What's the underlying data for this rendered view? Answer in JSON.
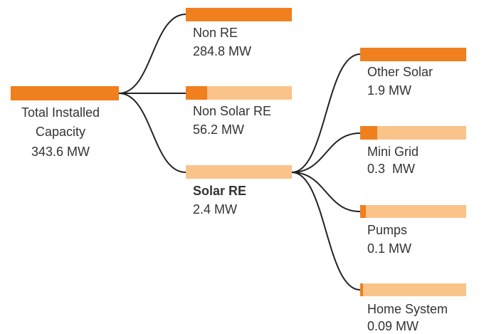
{
  "nodes": [
    {
      "label": "Total Installed Capacity",
      "value": "343.6 MW"
    },
    {
      "label": "Non RE",
      "value": "284.8 MW"
    },
    {
      "label": "Non Solar RE",
      "value": "56.2 MW"
    },
    {
      "label": "Solar RE",
      "value": "2.4 MW"
    },
    {
      "label": "Other Solar",
      "value": "1.9 MW"
    },
    {
      "label": "Mini Grid",
      "value": "0.3  MW"
    },
    {
      "label": "Pumps",
      "value": "0.1 MW"
    },
    {
      "label": "Home System",
      "value": "0.09 MW"
    }
  ]
}
